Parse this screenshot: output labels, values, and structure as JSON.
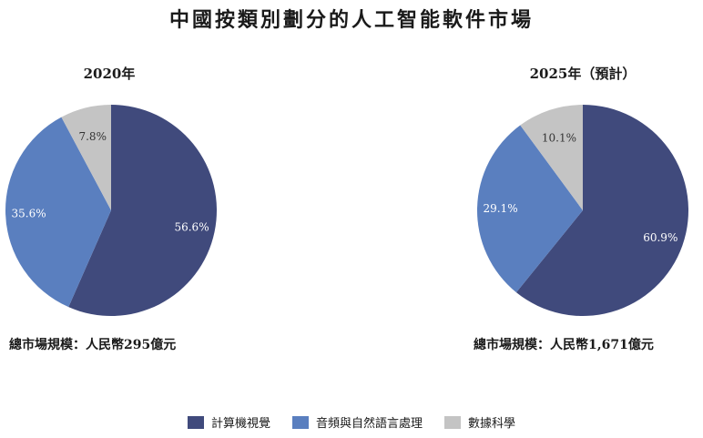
{
  "title": "中國按類別劃分的人工智能軟件市場",
  "charts": [
    {
      "title": "2020年",
      "total_label": "總市場規模：人民幣295億元"
    },
    {
      "title": "2025年（預計）",
      "total_label": "總市場規模：人民幣1,671億元"
    }
  ],
  "chart_data": [
    {
      "type": "pie",
      "title": "2020年",
      "categories": [
        "計算機視覺",
        "音頻與自然語言處理",
        "數據科學"
      ],
      "values": [
        56.6,
        35.6,
        7.8
      ],
      "labels": [
        "56.6%",
        "35.6%",
        "7.8%"
      ],
      "colors": [
        "#404a7c",
        "#5a7fbf",
        "#c4c4c4"
      ]
    },
    {
      "type": "pie",
      "title": "2025年（預計）",
      "categories": [
        "計算機視覺",
        "音頻與自然語言處理",
        "數據科學"
      ],
      "values": [
        60.9,
        29.1,
        10.1
      ],
      "labels": [
        "60.9%",
        "29.1%",
        "10.1%"
      ],
      "colors": [
        "#404a7c",
        "#5a7fbf",
        "#c4c4c4"
      ]
    }
  ],
  "legend": [
    {
      "label": "計算機視覺",
      "color": "#404a7c"
    },
    {
      "label": "音頻與自然語言處理",
      "color": "#5a7fbf"
    },
    {
      "label": "數據科學",
      "color": "#c4c4c4"
    }
  ]
}
